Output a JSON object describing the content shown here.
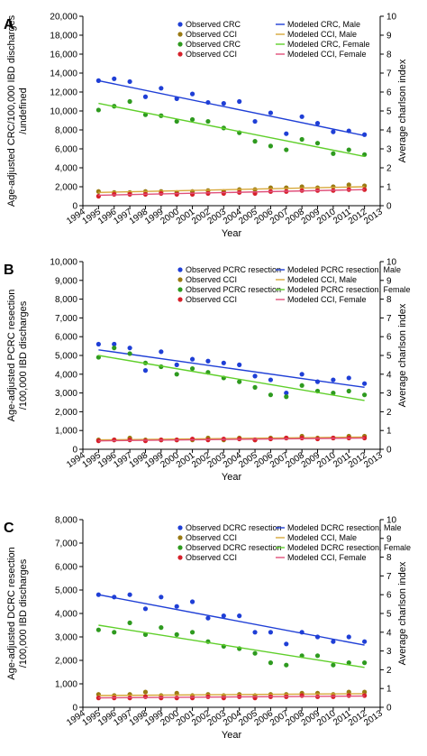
{
  "chart_data": [
    {
      "type": "scatter",
      "panel_label": "A",
      "xlabel": "Year",
      "ylabel": "Age-adjusted CRC/100,000 IBD discharges",
      "ylabel2": "Average charlson index",
      "xlim": [
        1994,
        2013
      ],
      "ylim": [
        0,
        20000
      ],
      "y2lim": [
        0,
        10
      ],
      "x_ticks": [
        1994,
        1995,
        1996,
        1997,
        1998,
        1999,
        2000,
        2001,
        2002,
        2003,
        2004,
        2005,
        2006,
        2007,
        2008,
        2009,
        2010,
        2011,
        2012,
        2013
      ],
      "y_ticks": [
        0,
        2000,
        4000,
        6000,
        8000,
        10000,
        12000,
        14000,
        16000,
        18000,
        20000
      ],
      "y_tick_labels": [
        "0",
        "2,000",
        "4,000",
        "6,000",
        "8,000",
        "10,000",
        "12,000",
        "14,000",
        "16,000",
        "18,000",
        "20,000"
      ],
      "y2_ticks": [
        0,
        1,
        2,
        3,
        4,
        5,
        6,
        7,
        8,
        9,
        10
      ],
      "legend": [
        {
          "label": "Observed CRC",
          "kind": "point",
          "color": "#1f3fd6"
        },
        {
          "label": "Modeled CRC, Male",
          "kind": "line",
          "color": "#1f3fd6"
        },
        {
          "label": "Observed CCI",
          "kind": "point",
          "color": "#9a7a12"
        },
        {
          "label": "Modeled CCI, Male",
          "kind": "line",
          "color": "#d7a83a"
        },
        {
          "label": "Observed CRC",
          "kind": "point",
          "color": "#2e9a1f"
        },
        {
          "label": "Modeled CRC, Female",
          "kind": "line",
          "color": "#5fcf2a"
        },
        {
          "label": "Observed CCI",
          "kind": "point",
          "color": "#d6202a"
        },
        {
          "label": "Modeled CCI, Female",
          "kind": "line",
          "color": "#e0507a"
        }
      ],
      "series": [
        {
          "color": "#1f3fd6",
          "kind": "points",
          "axis": "left",
          "x": [
            1995,
            1996,
            1997,
            1998,
            1999,
            2000,
            2001,
            2002,
            2003,
            2004,
            2005,
            2006,
            2007,
            2008,
            2009,
            2010,
            2011,
            2012
          ],
          "y": [
            13200,
            13400,
            13100,
            11500,
            12400,
            11300,
            11800,
            10900,
            10800,
            11000,
            8900,
            9800,
            7600,
            9400,
            8700,
            7800,
            7900,
            7500
          ]
        },
        {
          "color": "#1f3fd6",
          "kind": "line",
          "axis": "left",
          "x": [
            1995,
            2012
          ],
          "y": [
            13200,
            7400
          ]
        },
        {
          "color": "#2e9a1f",
          "kind": "points",
          "axis": "left",
          "x": [
            1995,
            1996,
            1997,
            1998,
            1999,
            2000,
            2001,
            2002,
            2003,
            2004,
            2005,
            2006,
            2007,
            2008,
            2009,
            2010,
            2011,
            2012
          ],
          "y": [
            10100,
            10500,
            11000,
            9600,
            9500,
            8900,
            9100,
            8900,
            8200,
            7700,
            6800,
            6300,
            5900,
            7000,
            6600,
            5500,
            5900,
            5400
          ]
        },
        {
          "color": "#5fcf2a",
          "kind": "line",
          "axis": "left",
          "x": [
            1995,
            2012
          ],
          "y": [
            10800,
            5200
          ]
        },
        {
          "color": "#9a7a12",
          "kind": "points",
          "axis": "left",
          "x": [
            1995,
            1996,
            1997,
            1998,
            1999,
            2000,
            2001,
            2002,
            2003,
            2004,
            2005,
            2006,
            2007,
            2008,
            2009,
            2010,
            2011,
            2012
          ],
          "y": [
            1500,
            1400,
            1400,
            1500,
            1500,
            1400,
            1500,
            1600,
            1500,
            1700,
            1700,
            1900,
            1900,
            2000,
            1900,
            2000,
            2200,
            2100
          ]
        },
        {
          "color": "#d7a83a",
          "kind": "line",
          "axis": "left",
          "x": [
            1995,
            2012
          ],
          "y": [
            1400,
            2000
          ]
        },
        {
          "color": "#d6202a",
          "kind": "points",
          "axis": "left",
          "x": [
            1995,
            1996,
            1997,
            1998,
            1999,
            2000,
            2001,
            2002,
            2003,
            2004,
            2005,
            2006,
            2007,
            2008,
            2009,
            2010,
            2011,
            2012
          ],
          "y": [
            1000,
            1200,
            1200,
            1200,
            1300,
            1200,
            1200,
            1300,
            1300,
            1400,
            1300,
            1500,
            1500,
            1600,
            1600,
            1600,
            1700,
            1700
          ]
        },
        {
          "color": "#e0507a",
          "kind": "line",
          "axis": "left",
          "x": [
            1995,
            2012
          ],
          "y": [
            1100,
            1700
          ]
        }
      ]
    },
    {
      "type": "scatter",
      "panel_label": "B",
      "xlabel": "Year",
      "ylabel": "Age-adjusted PCRC resection /100,000 IBD discharges",
      "ylabel2": "Average charlson index",
      "xlim": [
        1994,
        2013
      ],
      "ylim": [
        0,
        10000
      ],
      "y2lim": [
        0,
        10
      ],
      "x_ticks": [
        1994,
        1995,
        1996,
        1997,
        1998,
        1999,
        2000,
        2001,
        2002,
        2003,
        2004,
        2005,
        2006,
        2007,
        2008,
        2009,
        2010,
        2011,
        2012,
        2013
      ],
      "y_ticks": [
        0,
        1000,
        2000,
        3000,
        4000,
        5000,
        6000,
        7000,
        8000,
        9000,
        10000
      ],
      "y_tick_labels": [
        "0",
        "1,000",
        "2,000",
        "3,000",
        "4,000",
        "5,000",
        "6,000",
        "7,000",
        "8,000",
        "9,000",
        "10,000"
      ],
      "y2_ticks": [
        0,
        1,
        2,
        3,
        4,
        5,
        6,
        7,
        8,
        9,
        10
      ],
      "legend": [
        {
          "label": "Observed PCRC resection",
          "kind": "point",
          "color": "#1f3fd6"
        },
        {
          "label": "Modeled PCRC resection, Male",
          "kind": "line",
          "color": "#1f3fd6"
        },
        {
          "label": "Observed CCI",
          "kind": "point",
          "color": "#9a7a12"
        },
        {
          "label": "Modeled CCI, Male",
          "kind": "line",
          "color": "#d7a83a"
        },
        {
          "label": "Observed PCRC resection",
          "kind": "point",
          "color": "#2e9a1f"
        },
        {
          "label": "Modeled PCRC resection, Female",
          "kind": "line",
          "color": "#5fcf2a"
        },
        {
          "label": "Observed CCI",
          "kind": "point",
          "color": "#d6202a"
        },
        {
          "label": "Modeled CCI, Female",
          "kind": "line",
          "color": "#e0507a"
        }
      ],
      "series": [
        {
          "color": "#1f3fd6",
          "kind": "points",
          "axis": "left",
          "x": [
            1995,
            1996,
            1997,
            1998,
            1999,
            2000,
            2001,
            2002,
            2003,
            2004,
            2005,
            2006,
            2007,
            2008,
            2009,
            2010,
            2011,
            2012
          ],
          "y": [
            5600,
            5600,
            5400,
            4200,
            5200,
            4500,
            4800,
            4700,
            4600,
            4500,
            3900,
            3700,
            3000,
            4000,
            3600,
            3700,
            3800,
            3500
          ]
        },
        {
          "color": "#1f3fd6",
          "kind": "line",
          "axis": "left",
          "x": [
            1995,
            2012
          ],
          "y": [
            5300,
            3300
          ]
        },
        {
          "color": "#2e9a1f",
          "kind": "points",
          "axis": "left",
          "x": [
            1995,
            1996,
            1997,
            1998,
            1999,
            2000,
            2001,
            2002,
            2003,
            2004,
            2005,
            2006,
            2007,
            2008,
            2009,
            2010,
            2011,
            2012
          ],
          "y": [
            4900,
            5400,
            5100,
            4600,
            4400,
            4000,
            4300,
            4100,
            3800,
            3600,
            3300,
            2900,
            2800,
            3400,
            3100,
            3000,
            3100,
            2900
          ]
        },
        {
          "color": "#5fcf2a",
          "kind": "line",
          "axis": "left",
          "x": [
            1995,
            2012
          ],
          "y": [
            5000,
            2600
          ]
        },
        {
          "color": "#9a7a12",
          "kind": "points",
          "axis": "left",
          "x": [
            1995,
            1996,
            1997,
            1998,
            1999,
            2000,
            2001,
            2002,
            2003,
            2004,
            2005,
            2006,
            2007,
            2008,
            2009,
            2010,
            2011,
            2012
          ],
          "y": [
            500,
            500,
            600,
            500,
            500,
            500,
            500,
            600,
            500,
            600,
            500,
            600,
            600,
            700,
            600,
            600,
            700,
            700
          ]
        },
        {
          "color": "#d7a83a",
          "kind": "line",
          "axis": "left",
          "x": [
            1995,
            2012
          ],
          "y": [
            500,
            650
          ]
        },
        {
          "color": "#d6202a",
          "kind": "points",
          "axis": "left",
          "x": [
            1995,
            1996,
            1997,
            1998,
            1999,
            2000,
            2001,
            2002,
            2003,
            2004,
            2005,
            2006,
            2007,
            2008,
            2009,
            2010,
            2011,
            2012
          ],
          "y": [
            450,
            500,
            500,
            450,
            500,
            500,
            550,
            500,
            550,
            550,
            500,
            550,
            600,
            600,
            550,
            600,
            600,
            600
          ]
        },
        {
          "color": "#e0507a",
          "kind": "line",
          "axis": "left",
          "x": [
            1995,
            2012
          ],
          "y": [
            450,
            600
          ]
        }
      ]
    },
    {
      "type": "scatter",
      "panel_label": "C",
      "xlabel": "Year",
      "ylabel": "Age-adjusted DCRC resection /100,000 IBD discharges",
      "ylabel2": "Average charlson index",
      "xlim": [
        1994,
        2013
      ],
      "ylim": [
        0,
        8000
      ],
      "y2lim": [
        0,
        10
      ],
      "x_ticks": [
        1994,
        1995,
        1996,
        1997,
        1998,
        1999,
        2000,
        2001,
        2002,
        2003,
        2004,
        2005,
        2006,
        2007,
        2008,
        2009,
        2010,
        2011,
        2012,
        2013
      ],
      "y_ticks": [
        0,
        1000,
        2000,
        3000,
        4000,
        5000,
        6000,
        7000,
        8000
      ],
      "y_tick_labels": [
        "0",
        "1,000",
        "2,000",
        "3,000",
        "4,000",
        "5,000",
        "6,000",
        "7,000",
        "8,000"
      ],
      "y2_ticks": [
        0,
        1,
        2,
        3,
        4,
        5,
        6,
        7,
        8,
        9,
        10
      ],
      "legend": [
        {
          "label": "Observed DCRC resection",
          "kind": "point",
          "color": "#1f3fd6"
        },
        {
          "label": "Modeled DCRC resection, Male",
          "kind": "line",
          "color": "#1f3fd6"
        },
        {
          "label": "Observed CCI",
          "kind": "point",
          "color": "#9a7a12"
        },
        {
          "label": "Modeled CCI, Male",
          "kind": "line",
          "color": "#d7a83a"
        },
        {
          "label": "Observed DCRC resection",
          "kind": "point",
          "color": "#2e9a1f"
        },
        {
          "label": "Modeled DCRC resection, Female",
          "kind": "line",
          "color": "#5fcf2a"
        },
        {
          "label": "Observed CCI",
          "kind": "point",
          "color": "#d6202a"
        },
        {
          "label": "Modeled CCI, Female",
          "kind": "line",
          "color": "#e0507a"
        }
      ],
      "series": [
        {
          "color": "#1f3fd6",
          "kind": "points",
          "axis": "left",
          "x": [
            1995,
            1996,
            1997,
            1998,
            1999,
            2000,
            2001,
            2002,
            2003,
            2004,
            2005,
            2006,
            2007,
            2008,
            2009,
            2010,
            2011,
            2012
          ],
          "y": [
            4800,
            4700,
            4800,
            4200,
            4700,
            4300,
            4500,
            3800,
            3900,
            3900,
            3200,
            3200,
            2700,
            3200,
            3000,
            2800,
            3000,
            2800
          ]
        },
        {
          "color": "#1f3fd6",
          "kind": "line",
          "axis": "left",
          "x": [
            1995,
            2012
          ],
          "y": [
            4800,
            2650
          ]
        },
        {
          "color": "#2e9a1f",
          "kind": "points",
          "axis": "left",
          "x": [
            1995,
            1996,
            1997,
            1998,
            1999,
            2000,
            2001,
            2002,
            2003,
            2004,
            2005,
            2006,
            2007,
            2008,
            2009,
            2010,
            2011,
            2012
          ],
          "y": [
            3300,
            3200,
            3600,
            3100,
            3400,
            3100,
            3200,
            2800,
            2600,
            2500,
            2300,
            1900,
            1800,
            2200,
            2200,
            1800,
            1900,
            1900
          ]
        },
        {
          "color": "#5fcf2a",
          "kind": "line",
          "axis": "left",
          "x": [
            1995,
            2012
          ],
          "y": [
            3500,
            1700
          ]
        },
        {
          "color": "#9a7a12",
          "kind": "points",
          "axis": "left",
          "x": [
            1995,
            1996,
            1997,
            1998,
            1999,
            2000,
            2001,
            2002,
            2003,
            2004,
            2005,
            2006,
            2007,
            2008,
            2009,
            2010,
            2011,
            2012
          ],
          "y": [
            550,
            500,
            550,
            650,
            500,
            600,
            500,
            550,
            500,
            550,
            500,
            550,
            550,
            600,
            600,
            550,
            650,
            650
          ]
        },
        {
          "color": "#d7a83a",
          "kind": "line",
          "axis": "left",
          "x": [
            1995,
            2012
          ],
          "y": [
            500,
            580
          ]
        },
        {
          "color": "#d6202a",
          "kind": "points",
          "axis": "left",
          "x": [
            1995,
            1996,
            1997,
            1998,
            1999,
            2000,
            2001,
            2002,
            2003,
            2004,
            2005,
            2006,
            2007,
            2008,
            2009,
            2010,
            2011,
            2012
          ],
          "y": [
            400,
            400,
            400,
            450,
            400,
            400,
            400,
            450,
            400,
            450,
            400,
            450,
            450,
            500,
            450,
            450,
            500,
            500
          ]
        },
        {
          "color": "#e0507a",
          "kind": "line",
          "axis": "left",
          "x": [
            1995,
            2012
          ],
          "y": [
            400,
            480
          ]
        }
      ]
    }
  ]
}
